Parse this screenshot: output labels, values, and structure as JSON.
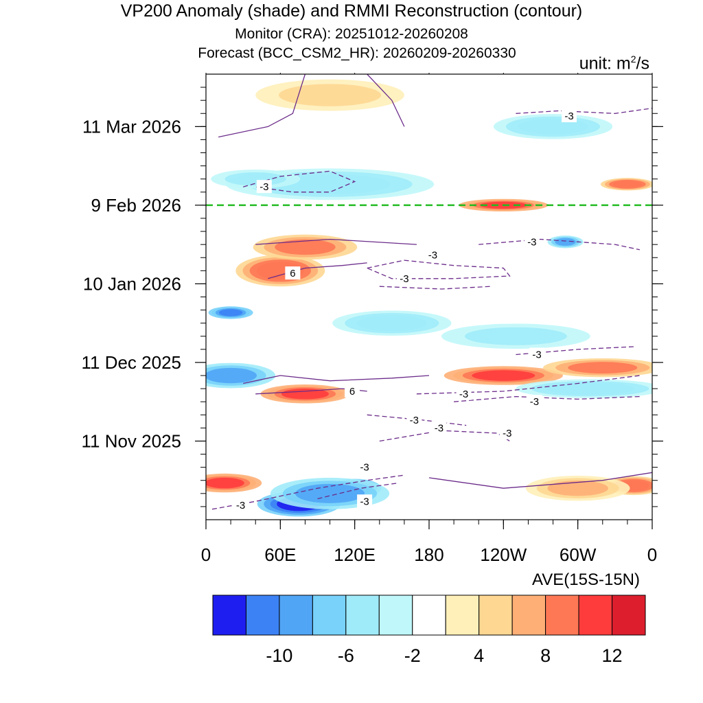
{
  "title": "VP200 Anomaly (shade) and RMMI Reconstruction (contour)",
  "subtitle": "Monitor (CRA): 20251012-20260208",
  "subtitle2": "Forecast (BCC_CSM2_HR): 20260209-20260330",
  "unit_label": "unit: m",
  "unit_power": "2",
  "unit_suffix": "/s",
  "chart_data": {
    "type": "heatmap",
    "title": "VP200 Anomaly (shade) and RMMI Reconstruction (contour)",
    "xlabel": "AVE(15S-15N)",
    "ylabel": "",
    "x_ticks": [
      {
        "lon": 0,
        "label": "0"
      },
      {
        "lon": 60,
        "label": "60E"
      },
      {
        "lon": 120,
        "label": "120E"
      },
      {
        "lon": 180,
        "label": "180"
      },
      {
        "lon": 240,
        "label": "120W"
      },
      {
        "lon": 300,
        "label": "60W"
      },
      {
        "lon": 360,
        "label": "0"
      }
    ],
    "xlim": [
      0,
      360
    ],
    "y_range_days": [
      0,
      170
    ],
    "y_note": "day index counted from 2025-10-12",
    "y_ticks": [
      {
        "day": 30,
        "label": "11 Nov 2025"
      },
      {
        "day": 60,
        "label": "11 Dec 2025"
      },
      {
        "day": 90,
        "label": "10 Jan 2026"
      },
      {
        "day": 120,
        "label": "9 Feb 2026"
      },
      {
        "day": 150,
        "label": "11 Mar 2026"
      }
    ],
    "forecast_start_day": 120,
    "forecast_line_color": "#22bb22",
    "colorbar": {
      "levels": [
        -12,
        -10,
        -8,
        -6,
        -4,
        -2,
        2,
        4,
        6,
        8,
        10,
        12
      ],
      "labels": [
        "-10",
        "-6",
        "-2",
        "4",
        "8",
        "12"
      ],
      "label_levels": [
        -10,
        -6,
        -2,
        4,
        8,
        12
      ],
      "colors": [
        "#1e1ef0",
        "#3c82f5",
        "#50a5f5",
        "#78d2fa",
        "#a0ebfa",
        "#c0f7fa",
        "#ffffff",
        "#fff0b9",
        "#fed792",
        "#feaf76",
        "#fe7855",
        "#ff3c3c",
        "#dc1e2d"
      ]
    },
    "anomaly_features": [
      {
        "lon": 75,
        "day": 6,
        "value": -13,
        "dlon": 28,
        "dday": 4
      },
      {
        "lon": 120,
        "day": 12,
        "value": -12,
        "dlon": 18,
        "dday": 3
      },
      {
        "lon": 100,
        "day": 10,
        "value": -9,
        "dlon": 40,
        "dday": 5
      },
      {
        "lon": 15,
        "day": 14,
        "value": 11,
        "dlon": 25,
        "dday": 3
      },
      {
        "lon": 345,
        "day": 13,
        "value": 10,
        "dlon": 20,
        "dday": 3
      },
      {
        "lon": 300,
        "day": 12,
        "value": 7,
        "dlon": 35,
        "dday": 4
      },
      {
        "lon": 80,
        "day": 48,
        "value": 11,
        "dlon": 30,
        "dday": 3
      },
      {
        "lon": 240,
        "day": 55,
        "value": 11,
        "dlon": 40,
        "dday": 3
      },
      {
        "lon": 320,
        "day": 58,
        "value": 9,
        "dlon": 40,
        "dday": 3
      },
      {
        "lon": 20,
        "day": 55,
        "value": -9,
        "dlon": 30,
        "dday": 4
      },
      {
        "lon": 310,
        "day": 50,
        "value": -6,
        "dlon": 50,
        "dday": 3
      },
      {
        "lon": 20,
        "day": 79,
        "value": -11,
        "dlon": 15,
        "dday": 2
      },
      {
        "lon": 60,
        "day": 95,
        "value": 10,
        "dlon": 30,
        "dday": 5
      },
      {
        "lon": 80,
        "day": 104,
        "value": 9,
        "dlon": 35,
        "dday": 4
      },
      {
        "lon": 290,
        "day": 106,
        "value": -9,
        "dlon": 12,
        "dday": 2
      },
      {
        "lon": 240,
        "day": 120,
        "value": 11,
        "dlon": 30,
        "dday": 2
      },
      {
        "lon": 340,
        "day": 128,
        "value": 10,
        "dlon": 18,
        "dday": 2
      },
      {
        "lon": 100,
        "day": 128,
        "value": -6,
        "dlon": 70,
        "dday": 5
      },
      {
        "lon": 280,
        "day": 150,
        "value": -6,
        "dlon": 40,
        "dday": 4
      },
      {
        "lon": 100,
        "day": 162,
        "value": 5,
        "dlon": 50,
        "dday": 5
      },
      {
        "lon": 150,
        "day": 75,
        "value": -6,
        "dlon": 40,
        "dday": 4
      },
      {
        "lon": 250,
        "day": 70,
        "value": -5,
        "dlon": 50,
        "dday": 4
      },
      {
        "lon": 40,
        "day": 130,
        "value": -5,
        "dlon": 30,
        "dday": 3
      }
    ],
    "contour_labels": [
      {
        "lon": 28,
        "day": 5.5,
        "label": "-3"
      },
      {
        "lon": 128,
        "day": 7,
        "label": "-3"
      },
      {
        "lon": 128,
        "day": 20,
        "label": "-3"
      },
      {
        "lon": 188,
        "day": 35,
        "label": "-3"
      },
      {
        "lon": 168,
        "day": 38,
        "label": "-3"
      },
      {
        "lon": 243,
        "day": 33,
        "label": "-3"
      },
      {
        "lon": 265,
        "day": 45,
        "label": "-3"
      },
      {
        "lon": 208,
        "day": 48,
        "label": "-3"
      },
      {
        "lon": 267,
        "day": 63,
        "label": "-3"
      },
      {
        "lon": 160,
        "day": 92,
        "label": "-3"
      },
      {
        "lon": 183,
        "day": 101,
        "label": "-3"
      },
      {
        "lon": 263,
        "day": 106,
        "label": "-3"
      },
      {
        "lon": 47,
        "day": 127,
        "label": "-3"
      },
      {
        "lon": 293,
        "day": 154,
        "label": "-3"
      },
      {
        "lon": 118,
        "day": 49,
        "label": "6"
      },
      {
        "lon": 70,
        "day": 94,
        "label": "6"
      }
    ],
    "contours": [
      {
        "dashed": true,
        "points": [
          [
            5,
            4
          ],
          [
            40,
            7
          ],
          [
            90,
            12
          ],
          [
            130,
            15
          ],
          [
            160,
            17
          ]
        ]
      },
      {
        "dashed": true,
        "points": [
          [
            90,
            8
          ],
          [
            125,
            12
          ],
          [
            155,
            14
          ]
        ]
      },
      {
        "dashed": true,
        "points": [
          [
            140,
            30
          ],
          [
            190,
            34
          ],
          [
            235,
            33
          ],
          [
            245,
            30
          ]
        ]
      },
      {
        "dashed": true,
        "points": [
          [
            130,
            40
          ],
          [
            175,
            38
          ],
          [
            210,
            36
          ]
        ]
      },
      {
        "dashed": true,
        "points": [
          [
            200,
            45
          ],
          [
            250,
            47
          ],
          [
            300,
            46
          ],
          [
            350,
            47
          ]
        ]
      },
      {
        "dashed": true,
        "points": [
          [
            170,
            48
          ],
          [
            240,
            49
          ],
          [
            300,
            52
          ],
          [
            350,
            55
          ]
        ]
      },
      {
        "dashed": true,
        "points": [
          [
            250,
            63
          ],
          [
            300,
            65
          ],
          [
            345,
            66
          ]
        ]
      },
      {
        "dashed": true,
        "points": [
          [
            130,
            96
          ],
          [
            160,
            99
          ],
          [
            200,
            97
          ],
          [
            240,
            96
          ],
          [
            245,
            93
          ],
          [
            200,
            92
          ],
          [
            150,
            92
          ],
          [
            130,
            96
          ]
        ]
      },
      {
        "dashed": true,
        "points": [
          [
            140,
            89
          ],
          [
            190,
            88
          ],
          [
            230,
            89
          ]
        ]
      },
      {
        "dashed": true,
        "points": [
          [
            220,
            105
          ],
          [
            270,
            107
          ],
          [
            330,
            105
          ],
          [
            350,
            103
          ]
        ]
      },
      {
        "dashed": true,
        "points": [
          [
            30,
            127
          ],
          [
            60,
            131
          ],
          [
            100,
            133
          ],
          [
            120,
            129
          ],
          [
            100,
            125
          ],
          [
            70,
            125
          ],
          [
            40,
            127
          ]
        ]
      },
      {
        "dashed": true,
        "points": [
          [
            250,
            155
          ],
          [
            285,
            156
          ],
          [
            330,
            155
          ],
          [
            360,
            157
          ]
        ]
      },
      {
        "dashed": false,
        "points": [
          [
            30,
            52
          ],
          [
            60,
            55
          ],
          [
            100,
            53
          ],
          [
            150,
            54
          ],
          [
            180,
            55
          ]
        ]
      },
      {
        "dashed": false,
        "points": [
          [
            40,
            48
          ],
          [
            80,
            49
          ],
          [
            110,
            50
          ],
          [
            130,
            49
          ]
        ]
      },
      {
        "dashed": false,
        "points": [
          [
            50,
            92
          ],
          [
            80,
            96
          ],
          [
            110,
            97
          ],
          [
            130,
            98
          ]
        ]
      },
      {
        "dashed": false,
        "points": [
          [
            40,
            105
          ],
          [
            100,
            107
          ],
          [
            170,
            105
          ]
        ]
      },
      {
        "dashed": false,
        "points": [
          [
            180,
            16
          ],
          [
            240,
            12
          ],
          [
            320,
            15
          ],
          [
            360,
            18
          ]
        ]
      },
      {
        "dashed": false,
        "points": [
          [
            10,
            146
          ],
          [
            50,
            150
          ],
          [
            70,
            155
          ],
          [
            80,
            170
          ]
        ]
      },
      {
        "dashed": false,
        "points": [
          [
            130,
            170
          ],
          [
            150,
            160
          ],
          [
            160,
            150
          ]
        ]
      }
    ]
  }
}
